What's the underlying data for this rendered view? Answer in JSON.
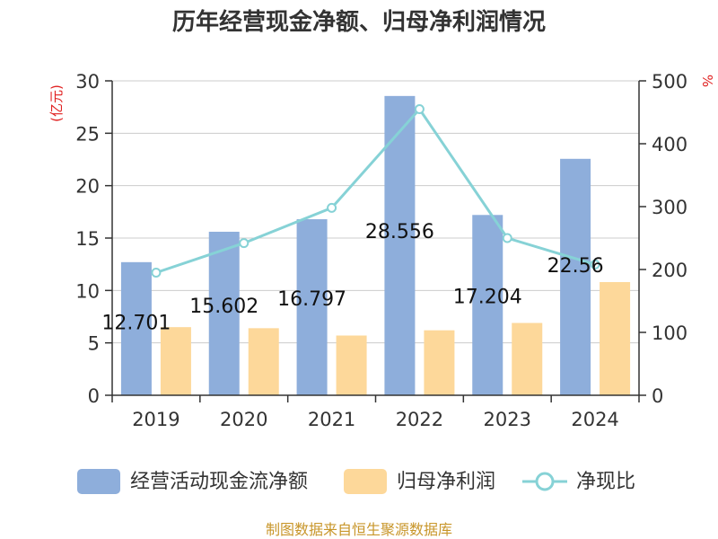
{
  "chart_data": {
    "type": "bar+line",
    "title": "历年经营现金净额、归母净利润情况",
    "categories": [
      "2019",
      "2020",
      "2021",
      "2022",
      "2023",
      "2024"
    ],
    "series": [
      {
        "name": "经营活动现金流净额",
        "type": "bar",
        "axis": "left",
        "values": [
          12.701,
          15.602,
          16.797,
          28.556,
          17.204,
          22.56
        ],
        "labels": [
          "12.701",
          "15.602",
          "16.797",
          "28.556",
          "17.204",
          "22.56"
        ]
      },
      {
        "name": "归母净利润",
        "type": "bar",
        "axis": "left",
        "values": [
          6.5,
          6.4,
          5.7,
          6.2,
          6.9,
          10.8
        ]
      },
      {
        "name": "净现比",
        "type": "line",
        "axis": "right",
        "values": [
          195,
          242,
          298,
          455,
          250,
          208
        ]
      }
    ],
    "left_axis": {
      "unit": "(亿元)",
      "ylim": [
        0,
        30
      ],
      "ticks": [
        0,
        5,
        10,
        15,
        20,
        25,
        30
      ]
    },
    "right_axis": {
      "unit": "%",
      "ylim": [
        0,
        500
      ],
      "ticks": [
        0,
        100,
        200,
        300,
        400,
        500
      ]
    },
    "grid": true,
    "legend_position": "bottom"
  },
  "colors": {
    "bar1": "#8eaedb",
    "bar2": "#fdd89a",
    "line": "#86d2d6",
    "grid": "#cccccc",
    "axis": "#333333"
  },
  "source": "制图数据来自恒生聚源数据库"
}
